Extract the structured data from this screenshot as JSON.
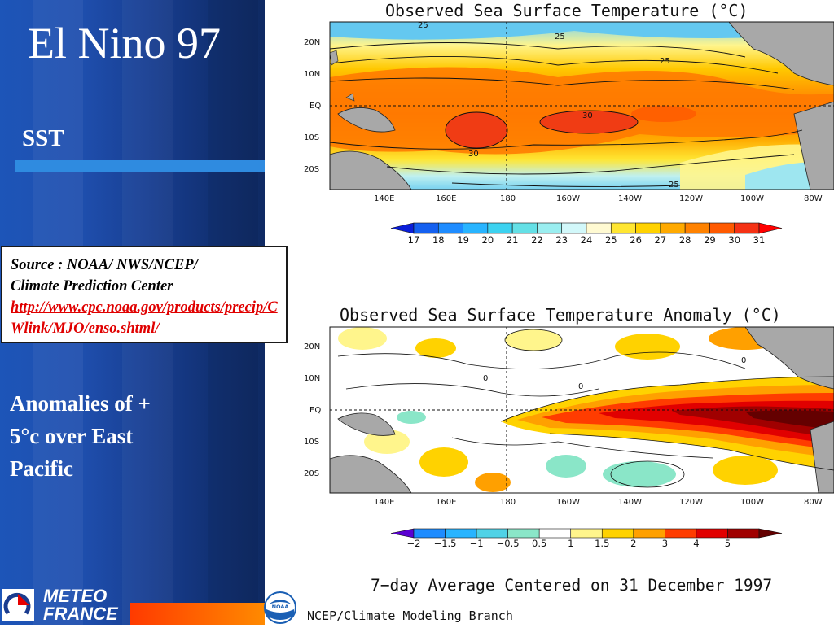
{
  "slide": {
    "title": "El Nino 97",
    "subtitle": "SST",
    "anomaly_text": "Anomalies of  +\n5°c over East\nPacific"
  },
  "source": {
    "line1": "Source : NOAA/ NWS/NCEP/",
    "line2": "Climate Prediction Center",
    "link": "http://www.cpc.noaa.gov/products/precip/CWlink/MJO/enso.shtml/"
  },
  "logos": {
    "meteo_line1": "METEO",
    "meteo_line2": "FRANCE",
    "noaa": "NOAA"
  },
  "top_map": {
    "title": "Observed Sea Surface Temperature (°C)",
    "lat_labels": [
      "20N",
      "10N",
      "EQ",
      "10S",
      "20S"
    ],
    "lon_labels": [
      "140E",
      "160E",
      "180",
      "160W",
      "140W",
      "120W",
      "100W",
      "80W"
    ],
    "contour_labels": [
      "25",
      "25",
      "25",
      "30",
      "30",
      "25"
    ],
    "colorbar_labels": [
      "17",
      "18",
      "19",
      "20",
      "21",
      "22",
      "23",
      "24",
      "25",
      "26",
      "27",
      "28",
      "29",
      "30",
      "31"
    ],
    "colorbar_colors": [
      "#0a1ed8",
      "#1460f0",
      "#1e8cff",
      "#28b4ff",
      "#3cd2f0",
      "#64e0e6",
      "#9aeef0",
      "#d2f8fa",
      "#fffad2",
      "#ffe632",
      "#ffd200",
      "#ffaa00",
      "#ff8200",
      "#ff5a00",
      "#f53214",
      "#ff0000"
    ]
  },
  "bottom_map": {
    "title": "Observed Sea Surface Temperature Anomaly (°C)",
    "lat_labels": [
      "20N",
      "10N",
      "EQ",
      "10S",
      "20S"
    ],
    "lon_labels": [
      "140E",
      "160E",
      "180",
      "160W",
      "140W",
      "120W",
      "100W",
      "80W"
    ],
    "contour_labels": [
      "0",
      "0",
      "0"
    ],
    "colorbar_labels": [
      "−2",
      "−1.5",
      "−1",
      "−0.5",
      "0.5",
      "1",
      "1.5",
      "2",
      "3",
      "4",
      "5"
    ],
    "colorbar_colors": [
      "#5a00d2",
      "#1e8cff",
      "#28b4ff",
      "#50d2e6",
      "#8ae6c8",
      "#ffffff",
      "#fff58c",
      "#ffd200",
      "#ffa000",
      "#ff3c00",
      "#e10000",
      "#a00000",
      "#640000"
    ]
  },
  "footer": {
    "average": "7−day Average Centered on 31 December 1997",
    "branch": "NCEP/Climate Modeling Branch"
  }
}
